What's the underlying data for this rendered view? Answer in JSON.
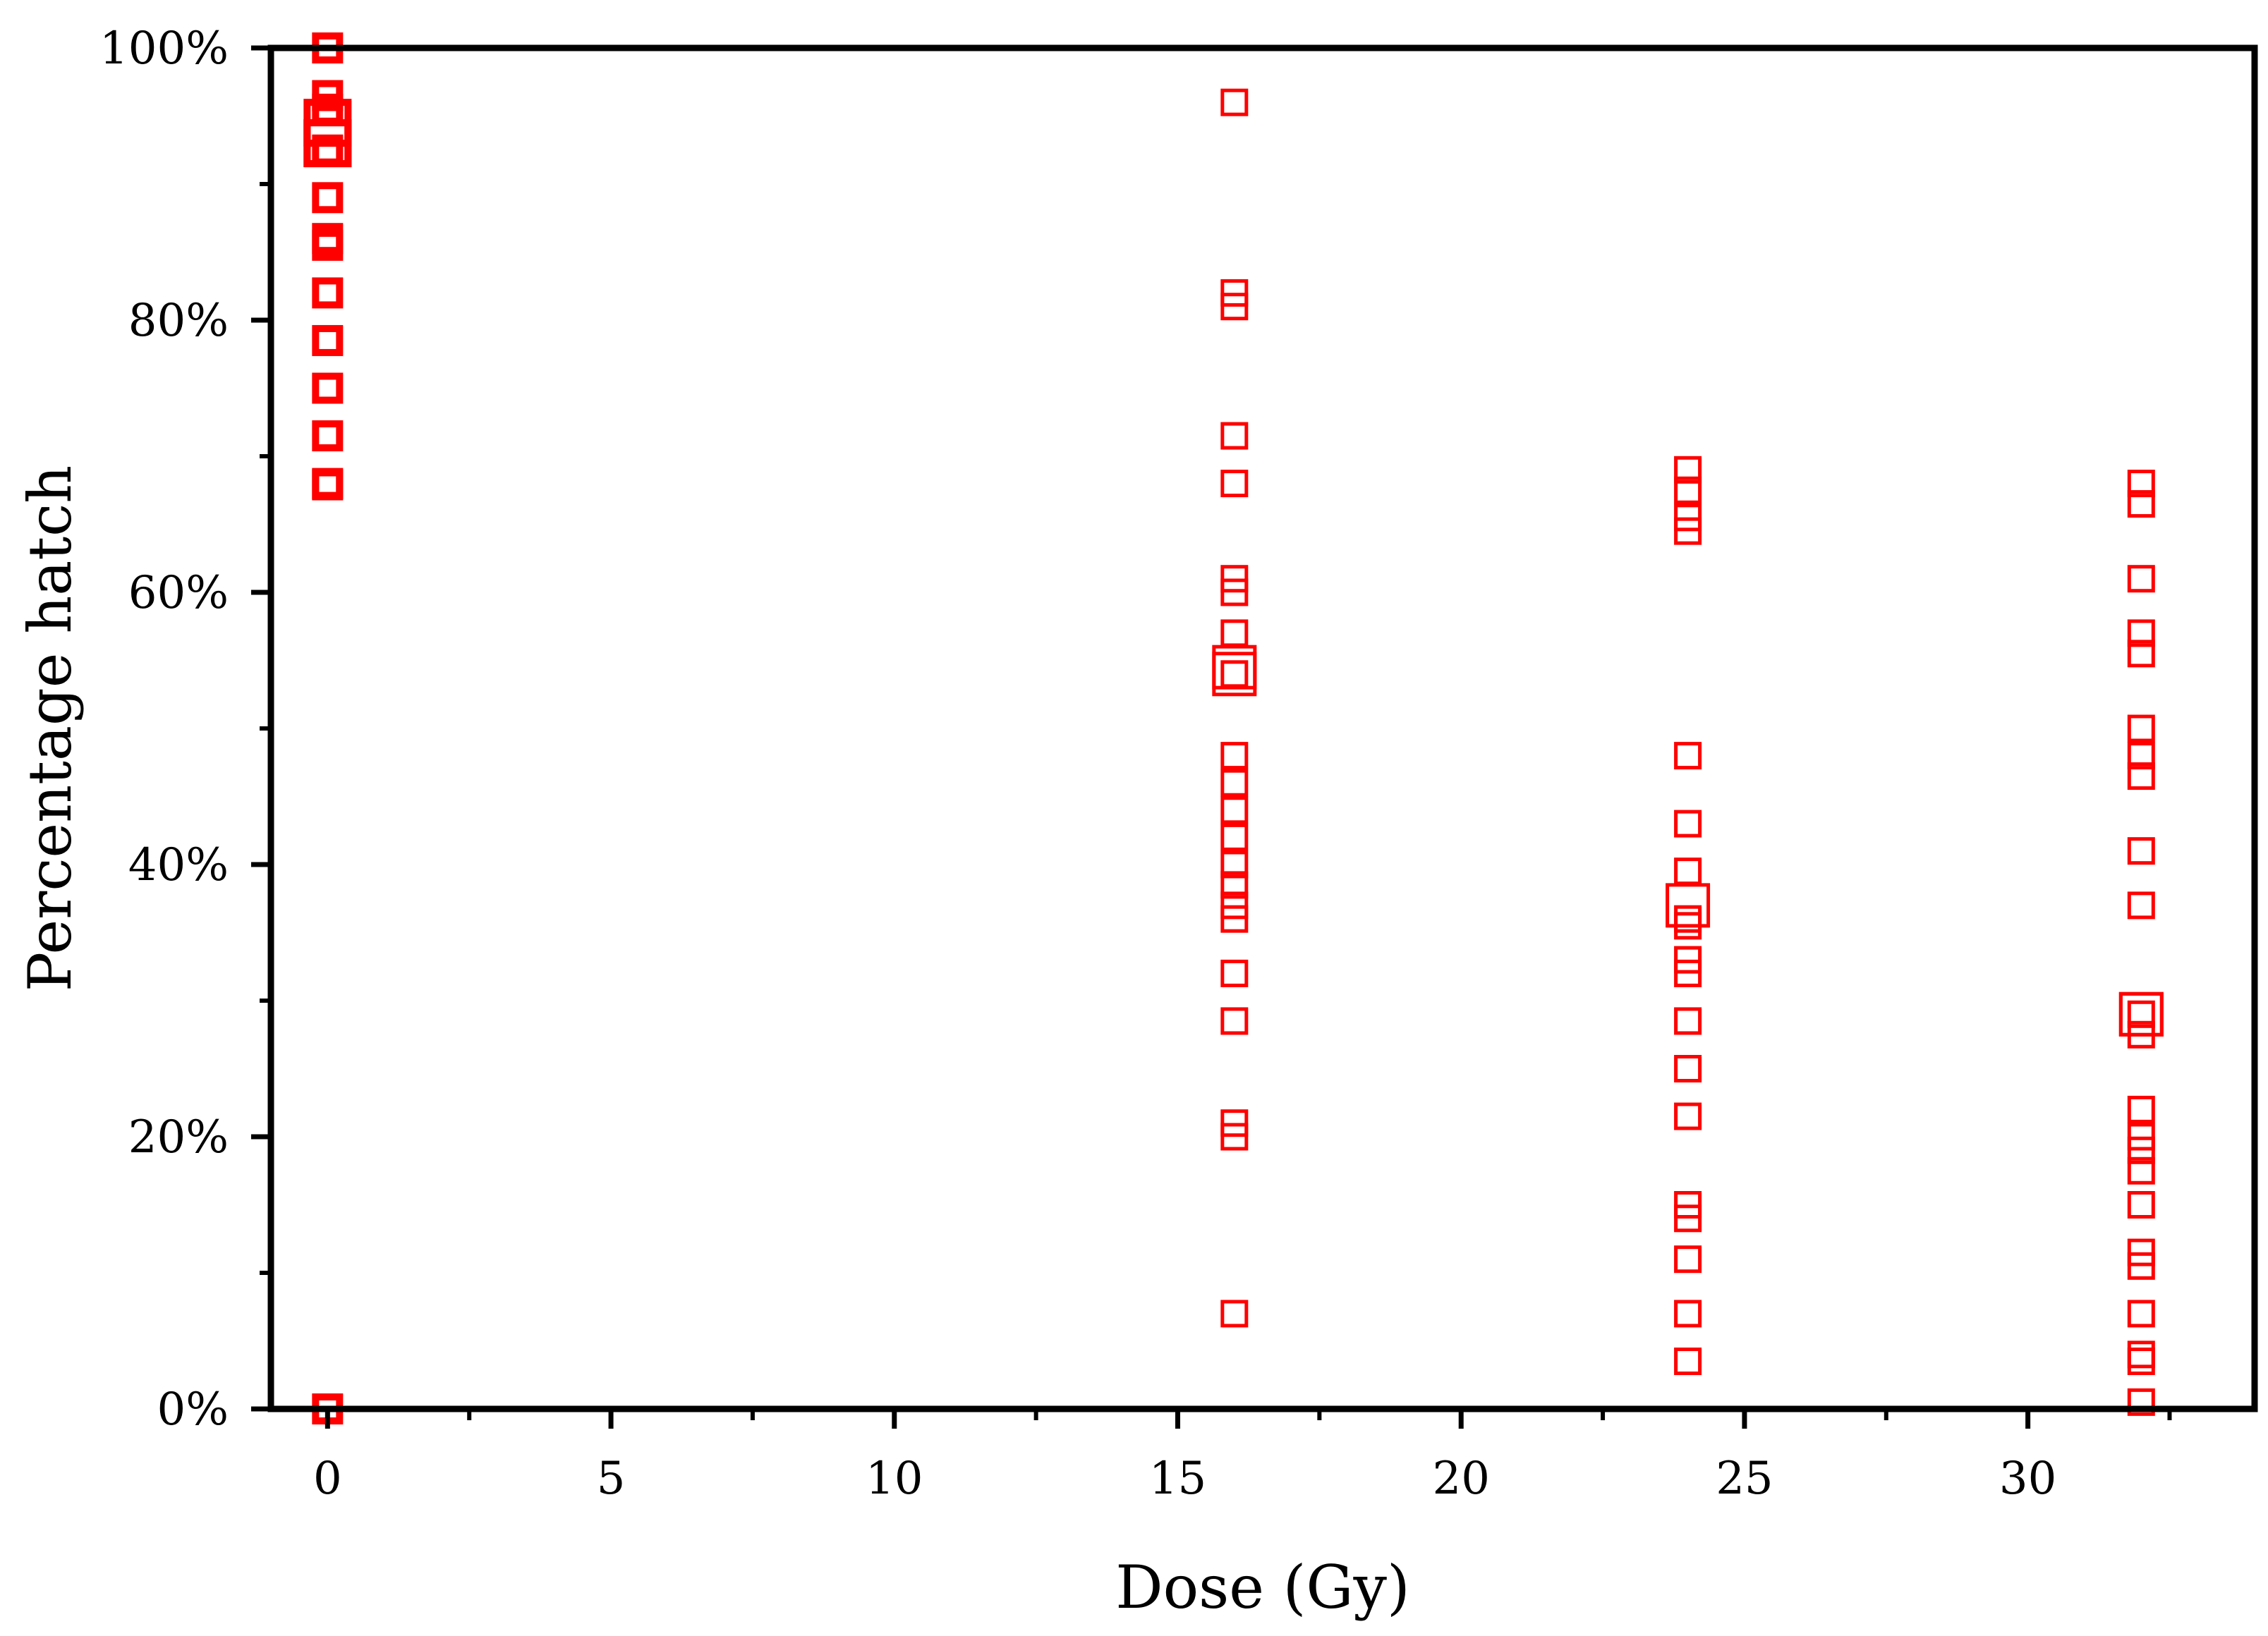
{
  "chart_data": {
    "type": "scatter",
    "title": "",
    "xlabel": "Dose (Gy)",
    "ylabel": "Percentage hatch",
    "xlim": [
      -1,
      34
    ],
    "ylim": [
      0,
      100
    ],
    "x_ticks": [
      0,
      5,
      10,
      15,
      20,
      25,
      30
    ],
    "x_tick_labels": [
      "0",
      "5",
      "10",
      "15",
      "20",
      "25",
      "30"
    ],
    "y_ticks": [
      0,
      20,
      40,
      60,
      80,
      100
    ],
    "y_tick_labels": [
      "0%",
      "20%",
      "40%",
      "60%",
      "80%",
      "100%"
    ],
    "grid": false,
    "marker": "open-square",
    "marker_color": "#ff0000",
    "series": [
      {
        "x": [
          0,
          0,
          0,
          0,
          0,
          0,
          0,
          0,
          0,
          0,
          0,
          0,
          0,
          0,
          0,
          0,
          0
        ],
        "y": [
          100,
          96.5,
          95.5,
          94.5,
          93,
          93,
          92.5,
          89,
          86,
          85.5,
          82,
          78.5,
          75,
          71.5,
          68,
          67.9,
          0
        ]
      },
      {
        "x": [
          16,
          16,
          16,
          16,
          16,
          16,
          16,
          16,
          16,
          16,
          16,
          16,
          16,
          16,
          16,
          16,
          16,
          16,
          16,
          16,
          16,
          16,
          16,
          16
        ],
        "y": [
          96,
          82,
          81,
          71.5,
          68,
          61,
          60,
          57,
          54,
          48,
          46,
          44,
          42,
          40,
          38.5,
          37,
          36,
          32,
          28.5,
          21,
          20,
          7,
          54.5,
          54
        ]
      },
      {
        "x": [
          24,
          24,
          24,
          24,
          24,
          24,
          24,
          24,
          24,
          24,
          24,
          24,
          24,
          24,
          24,
          24,
          24,
          24,
          24,
          24
        ],
        "y": [
          69,
          67.5,
          65.5,
          64.5,
          48,
          43,
          39.5,
          36,
          35.5,
          33,
          32,
          28.5,
          25,
          21.5,
          15,
          14,
          11,
          7,
          3.5,
          37
        ]
      },
      {
        "x": [
          32,
          32,
          32,
          32,
          32,
          32,
          32,
          32,
          32,
          32,
          32,
          32,
          32,
          32,
          32,
          32,
          32,
          32,
          32,
          32,
          32,
          32,
          32,
          32,
          32
        ],
        "y": [
          68,
          66.5,
          61,
          57,
          55.5,
          50,
          48,
          46.5,
          41,
          37,
          29,
          27.5,
          22,
          20,
          19,
          17.5,
          15,
          11.5,
          10.5,
          7,
          4,
          3.5,
          0.5,
          29,
          29
        ]
      }
    ],
    "large_marker_index": {
      "0": [
        3,
        4,
        5
      ],
      "1": [
        22,
        23
      ],
      "2": [
        19
      ],
      "3": [
        23,
        24
      ]
    }
  }
}
